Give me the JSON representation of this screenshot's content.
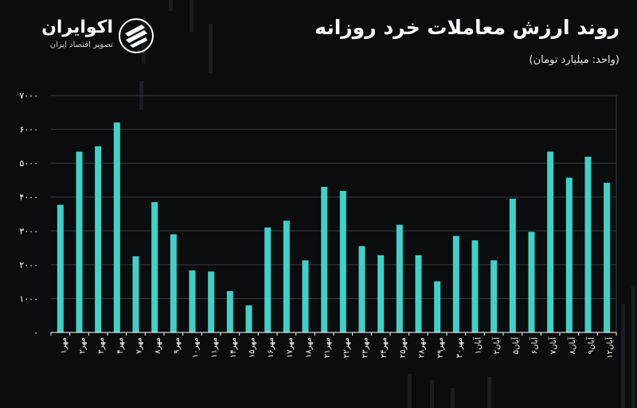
{
  "header": {
    "title": "روند ارزش معاملات خرد روزانه",
    "subtitle": "(واحد: میلیارد تومان)"
  },
  "brand": {
    "name": "اکوایران",
    "tagline": "تصویر اقتصاد ایران"
  },
  "colors": {
    "bar": "#3fd1c9",
    "grid": "#3a3d42",
    "axis": "#ffffff",
    "background": "#0b0c0d"
  },
  "chart_data": {
    "type": "bar",
    "title": "روند ارزش معاملات خرد روزانه",
    "subtitle": "(واحد: میلیارد تومان)",
    "xlabel": "",
    "ylabel": "",
    "ylim": [
      0,
      7000
    ],
    "grid": true,
    "legend": "none",
    "y_ticks": [
      0,
      1000,
      2000,
      3000,
      4000,
      5000,
      6000,
      7000
    ],
    "y_tick_labels": [
      "۰",
      "۱۰۰۰",
      "۲۰۰۰",
      "۳۰۰۰",
      "۴۰۰۰",
      "۵۰۰۰",
      "۶۰۰۰",
      "۷۰۰۰"
    ],
    "categories": [
      "مهر۱",
      "مهر۲",
      "مهر۳",
      "مهر۴",
      "مهر۷",
      "مهر۸",
      "مهر۹",
      "مهر۱۰",
      "مهر۱۱",
      "مهر۱۴",
      "مهر۱۵",
      "مهر۱۶",
      "مهر۱۷",
      "مهر۱۸",
      "مهر۲۱",
      "مهر۲۲",
      "مهر۲۳",
      "مهر۲۴",
      "مهر۲۵",
      "مهر۲۸",
      "مهر۲۹",
      "مهر۳۰",
      "آبان۱",
      "آبان۲",
      "آبان۵",
      "آبان۶",
      "آبان۷",
      "آبان۸",
      "آبان۹",
      "آبان۱۲"
    ],
    "values": [
      3770,
      5340,
      5500,
      6200,
      2250,
      3850,
      2900,
      1830,
      1800,
      1220,
      800,
      3100,
      3300,
      2130,
      4300,
      4180,
      2550,
      2280,
      3180,
      2280,
      1510,
      2850,
      2720,
      2130,
      3950,
      2970,
      5340,
      4570,
      5190,
      4420
    ]
  }
}
